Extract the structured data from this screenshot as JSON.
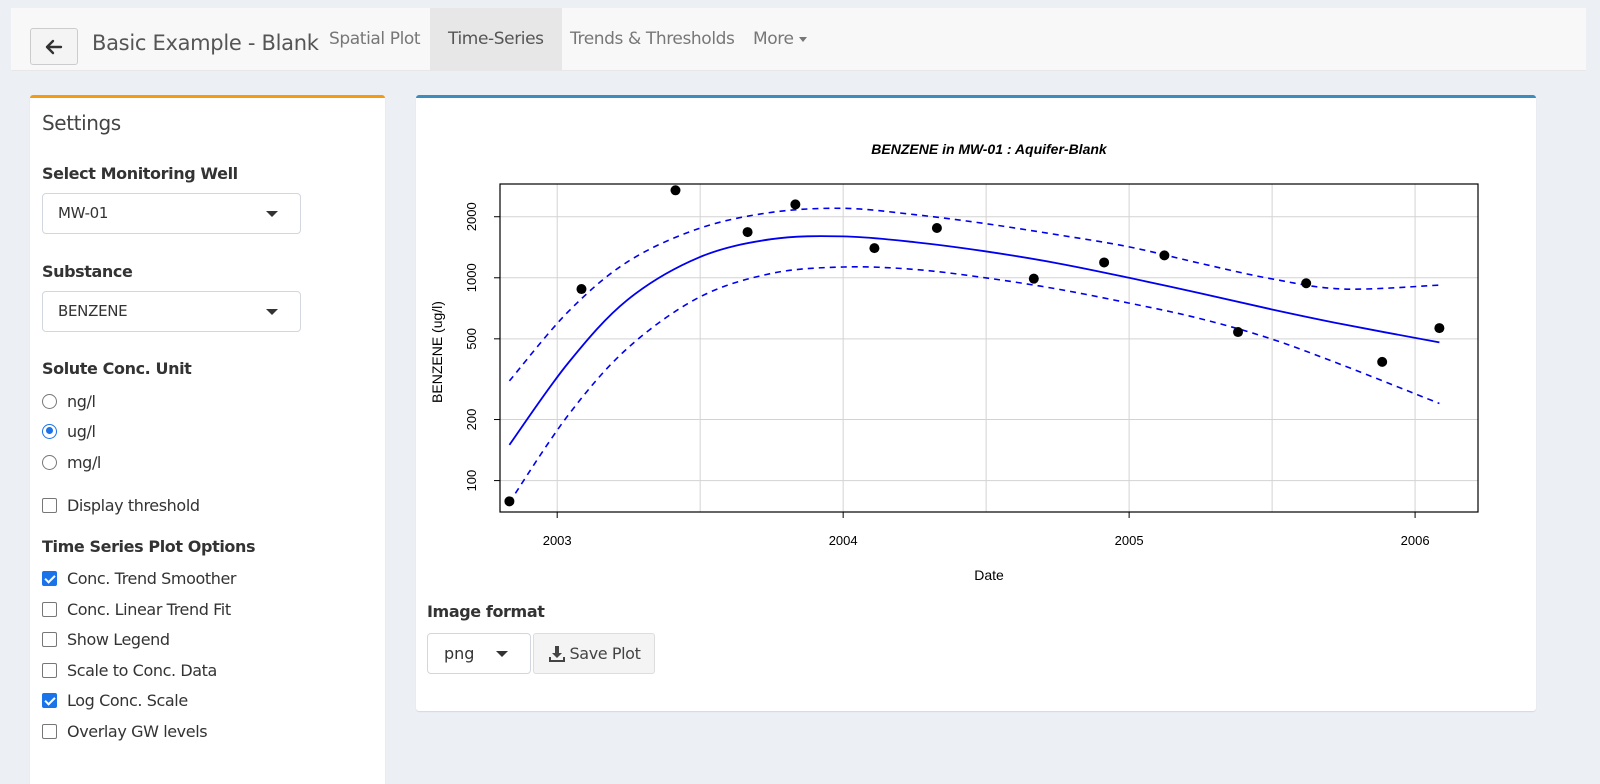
{
  "navbar": {
    "title": "Basic Example - Blank",
    "tabs": [
      {
        "label": "Spatial Plot",
        "active": false
      },
      {
        "label": "Time-Series",
        "active": true
      },
      {
        "label": "Trends & Thresholds",
        "active": false
      },
      {
        "label": "More",
        "active": false
      }
    ]
  },
  "settings": {
    "title": "Settings",
    "well_label": "Select Monitoring Well",
    "well_value": "MW-01",
    "substance_label": "Substance",
    "substance_value": "BENZENE",
    "unit_label": "Solute Conc. Unit",
    "units": [
      {
        "label": "ng/l",
        "selected": false
      },
      {
        "label": "ug/l",
        "selected": true
      },
      {
        "label": "mg/l",
        "selected": false
      }
    ],
    "display_threshold": {
      "label": "Display threshold",
      "checked": false
    },
    "ts_options_label": "Time Series Plot Options",
    "ts_options": [
      {
        "label": "Conc. Trend Smoother",
        "checked": true
      },
      {
        "label": "Conc. Linear Trend Fit",
        "checked": false
      },
      {
        "label": "Show Legend",
        "checked": false
      },
      {
        "label": "Scale to Conc. Data",
        "checked": false
      },
      {
        "label": "Log Conc. Scale",
        "checked": true
      },
      {
        "label": "Overlay GW levels",
        "checked": false
      }
    ]
  },
  "plot_panel": {
    "image_format_label": "Image format",
    "image_format_value": "png",
    "save_label": "Save Plot"
  },
  "chart_data": {
    "type": "scatter",
    "title": "BENZENE in MW-01 : Aquifer-Blank",
    "xlabel": "Date",
    "ylabel": "BENZENE (ug/l)",
    "log_y": true,
    "grid": true,
    "xlim": [
      2002.8,
      2006.22
    ],
    "ylim": [
      70,
      2900
    ],
    "x_ticks": [
      "2003",
      "2004",
      "2005",
      "2006"
    ],
    "y_ticks": [
      "100",
      "200",
      "500",
      "1000",
      "2000"
    ],
    "colors": {
      "points": "#000000",
      "trend": "#0000ee"
    },
    "points": {
      "x": [
        "2002-11-01",
        "2003-02-01",
        "2003-06-01",
        "2003-09-01",
        "2003-11-01",
        "2004-02-10",
        "2004-04-30",
        "2004-09-01",
        "2004-11-30",
        "2005-02-15",
        "2005-05-20",
        "2005-08-15",
        "2005-11-20",
        "2006-02-01"
      ],
      "y": [
        79,
        880,
        2700,
        1680,
        2300,
        1400,
        1760,
        990,
        1190,
        1290,
        540,
        940,
        385,
        565
      ]
    },
    "smoother": {
      "x": [
        "2002-11-01",
        "2003-01-15",
        "2003-04-01",
        "2003-07-01",
        "2003-10-01",
        "2004-01-01",
        "2004-04-01",
        "2004-07-01",
        "2004-10-01",
        "2005-01-01",
        "2005-04-01",
        "2005-07-01",
        "2005-10-01",
        "2006-02-01"
      ],
      "fit": [
        150,
        380,
        780,
        1260,
        1550,
        1600,
        1500,
        1350,
        1180,
        1000,
        840,
        700,
        590,
        480
      ],
      "upper": [
        310,
        680,
        1200,
        1750,
        2100,
        2200,
        2050,
        1850,
        1630,
        1420,
        1180,
        990,
        880,
        920
      ],
      "lower": [
        78,
        210,
        450,
        800,
        1050,
        1130,
        1100,
        1000,
        880,
        750,
        630,
        500,
        370,
        240
      ]
    }
  }
}
